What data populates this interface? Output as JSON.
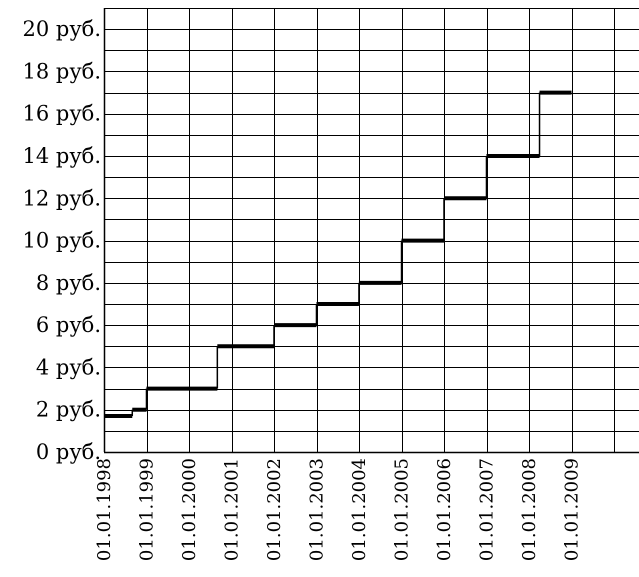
{
  "chart_data": {
    "type": "line",
    "step": true,
    "grid": true,
    "y_unit": "руб.",
    "ylim": [
      0,
      21
    ],
    "y_ticks": [
      {
        "value": 0,
        "label": "0 руб."
      },
      {
        "value": 2,
        "label": "2 руб."
      },
      {
        "value": 4,
        "label": "4 руб."
      },
      {
        "value": 6,
        "label": "6 руб."
      },
      {
        "value": 8,
        "label": "8 руб."
      },
      {
        "value": 10,
        "label": "10 руб."
      },
      {
        "value": 12,
        "label": "12 руб."
      },
      {
        "value": 14,
        "label": "14 руб."
      },
      {
        "value": 16,
        "label": "16 руб."
      },
      {
        "value": 18,
        "label": "18 руб."
      },
      {
        "value": 20,
        "label": "20 руб."
      }
    ],
    "x_ticks": [
      "01.01.1998",
      "01.01.1999",
      "01.01.2000",
      "01.01.2001",
      "01.01.2002",
      "01.01.2003",
      "01.01.2004",
      "01.01.2005",
      "01.01.2006",
      "01.01.2007",
      "01.01.2008",
      "01.01.2009"
    ],
    "xlim": [
      "1998-01-01",
      "2010-01-01"
    ],
    "series": [
      {
        "segments": [
          {
            "start": "1998-01-01",
            "end": "1998-09-01",
            "value": 1.7
          },
          {
            "start": "1998-09-01",
            "end": "1999-01-01",
            "value": 2.0
          },
          {
            "start": "1999-01-01",
            "end": "2000-09-01",
            "value": 3.0
          },
          {
            "start": "2000-09-01",
            "end": "2002-01-01",
            "value": 5.0
          },
          {
            "start": "2002-01-01",
            "end": "2003-01-01",
            "value": 6.0
          },
          {
            "start": "2003-01-01",
            "end": "2004-01-01",
            "value": 7.0
          },
          {
            "start": "2004-01-01",
            "end": "2005-01-01",
            "value": 8.0
          },
          {
            "start": "2005-01-01",
            "end": "2006-01-01",
            "value": 10.0
          },
          {
            "start": "2006-01-01",
            "end": "2007-01-01",
            "value": 12.0
          },
          {
            "start": "2007-01-01",
            "end": "2008-04-01",
            "value": 14.0
          },
          {
            "start": "2008-04-01",
            "end": "2009-01-01",
            "value": 17.0
          }
        ]
      }
    ]
  }
}
